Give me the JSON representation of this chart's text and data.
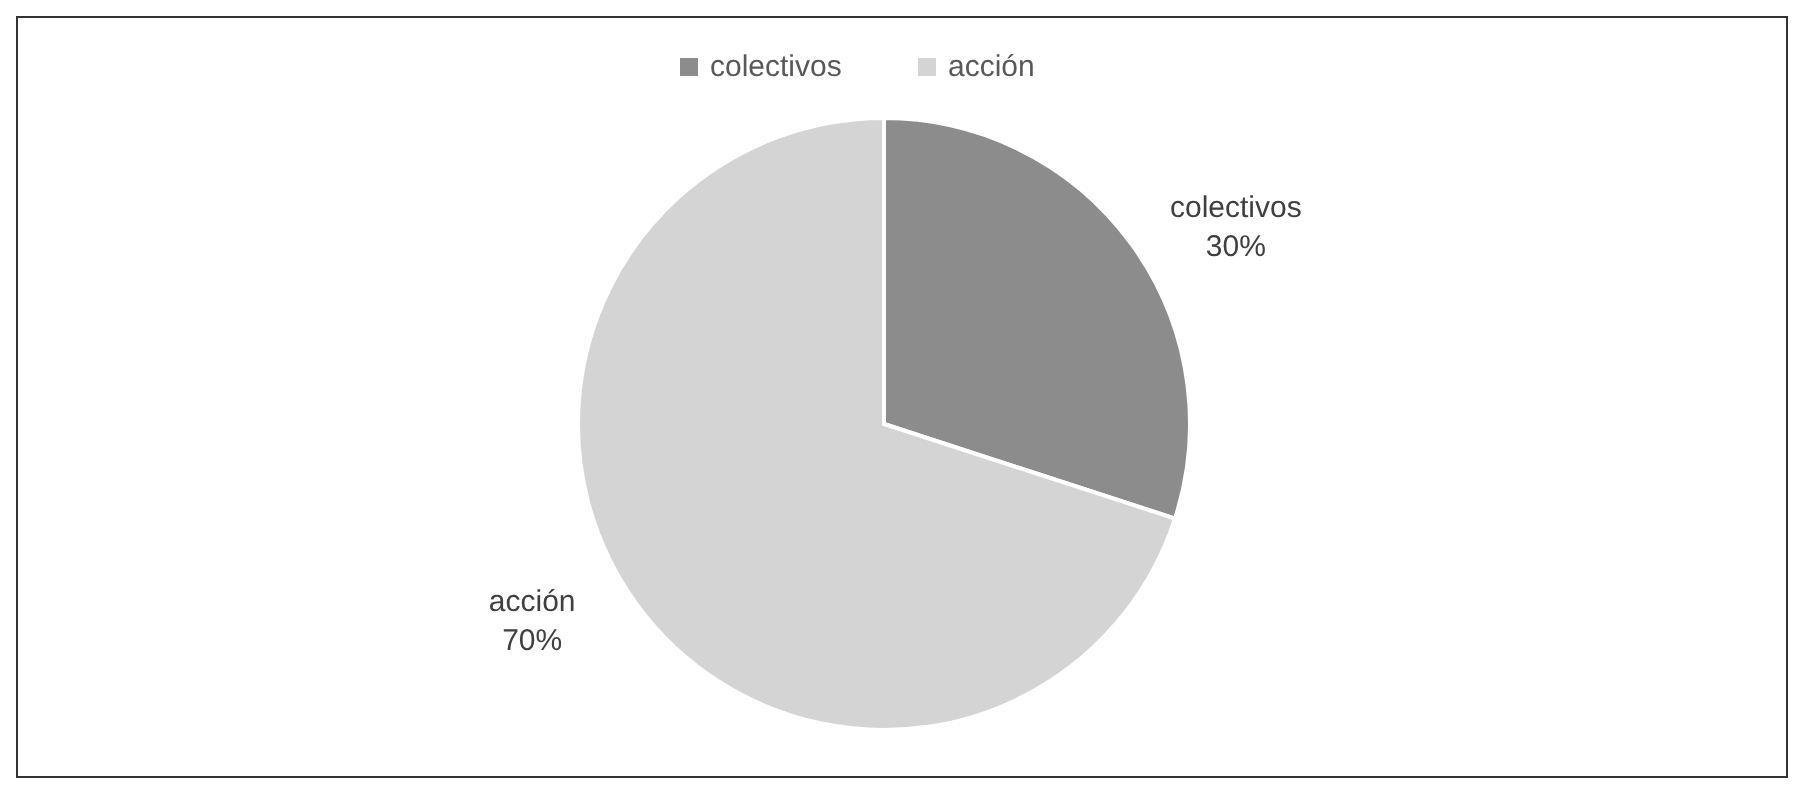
{
  "chart_data": {
    "type": "pie",
    "categories": [
      "colectivos",
      "acción"
    ],
    "values": [
      30,
      70
    ],
    "colors": [
      "#8c8c8c",
      "#d4d4d4"
    ],
    "value_labels": [
      "30%",
      "70%"
    ],
    "legend": "top"
  }
}
